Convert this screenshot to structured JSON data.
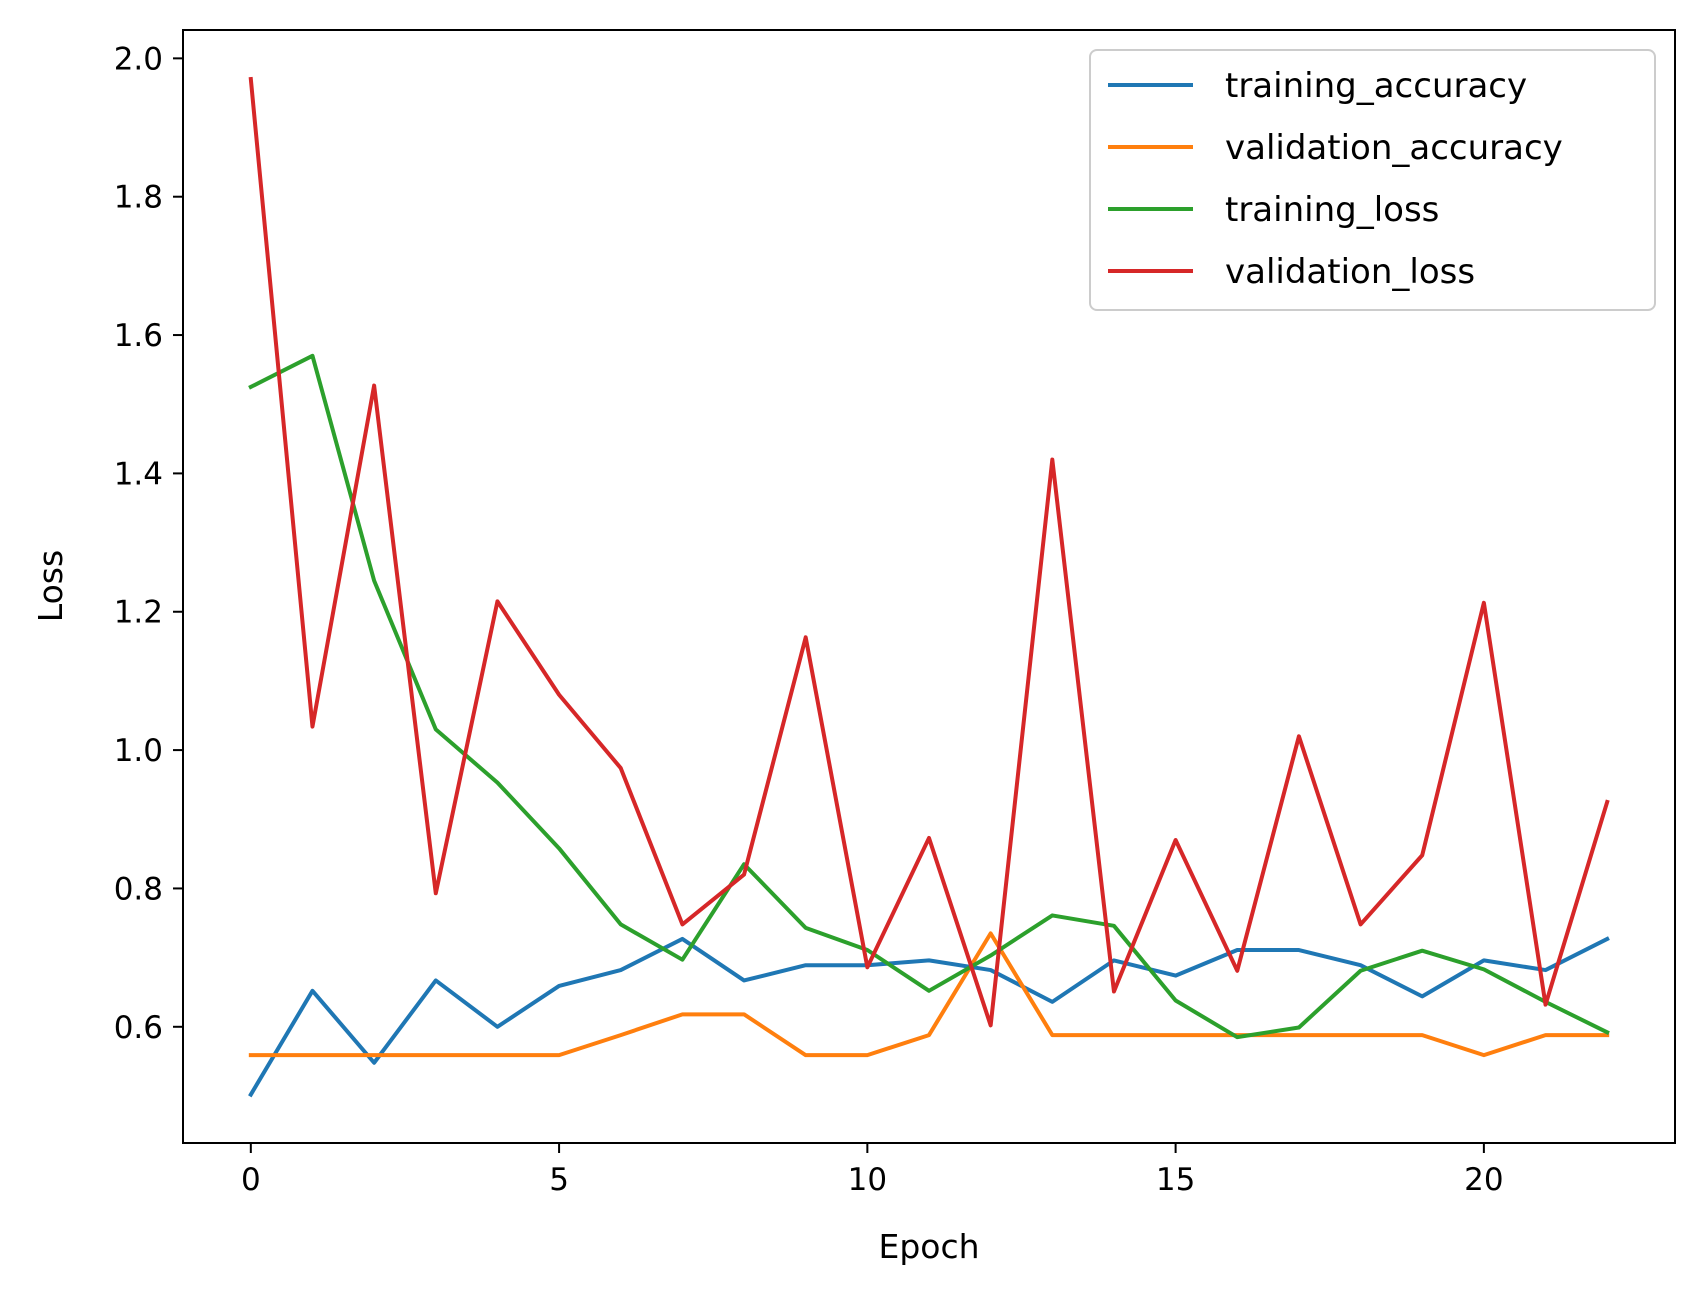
{
  "chart_data": {
    "type": "line",
    "title": "",
    "xlabel": "Epoch",
    "ylabel": "Loss",
    "xlim": [
      -1.1,
      23.1
    ],
    "ylim": [
      0.432,
      2.041
    ],
    "xticks": [
      0,
      5,
      10,
      15,
      20
    ],
    "yticks": [
      0.6,
      0.8,
      1.0,
      1.2,
      1.4,
      1.6,
      1.8,
      2.0
    ],
    "xtick_labels": [
      "0",
      "5",
      "10",
      "15",
      "20"
    ],
    "ytick_labels": [
      "0.6",
      "0.8",
      "1.0",
      "1.2",
      "1.4",
      "1.6",
      "1.8",
      "2.0"
    ],
    "grid": false,
    "legend_position": "top-right",
    "x": [
      0,
      1,
      2,
      3,
      4,
      5,
      6,
      7,
      8,
      9,
      10,
      11,
      12,
      13,
      14,
      15,
      16,
      17,
      18,
      19,
      20,
      21,
      22
    ],
    "series": [
      {
        "name": "training_accuracy",
        "color": "#1f77b4",
        "values": [
          0.502,
          0.652,
          0.548,
          0.667,
          0.6,
          0.659,
          0.682,
          0.727,
          0.667,
          0.689,
          0.689,
          0.696,
          0.682,
          0.636,
          0.696,
          0.674,
          0.711,
          0.711,
          0.689,
          0.644,
          0.696,
          0.682,
          0.727
        ]
      },
      {
        "name": "validation_accuracy",
        "color": "#ff7f0e",
        "values": [
          0.559,
          0.559,
          0.559,
          0.559,
          0.559,
          0.559,
          0.588,
          0.618,
          0.618,
          0.559,
          0.559,
          0.588,
          0.735,
          0.588,
          0.588,
          0.588,
          0.588,
          0.588,
          0.588,
          0.588,
          0.559,
          0.588,
          0.588
        ]
      },
      {
        "name": "training_loss",
        "color": "#2ca02c",
        "values": [
          1.525,
          1.57,
          1.245,
          1.03,
          0.953,
          0.858,
          0.748,
          0.697,
          0.835,
          0.743,
          0.711,
          0.652,
          0.703,
          0.761,
          0.746,
          0.638,
          0.585,
          0.599,
          0.681,
          0.71,
          0.683,
          0.636,
          0.592
        ]
      },
      {
        "name": "validation_loss",
        "color": "#d62728",
        "values": [
          1.97,
          1.034,
          1.527,
          0.793,
          1.215,
          1.08,
          0.974,
          0.748,
          0.82,
          1.163,
          0.686,
          0.873,
          0.602,
          1.42,
          0.651,
          0.87,
          0.681,
          1.02,
          0.748,
          0.848,
          1.213,
          0.632,
          0.925
        ]
      }
    ]
  }
}
